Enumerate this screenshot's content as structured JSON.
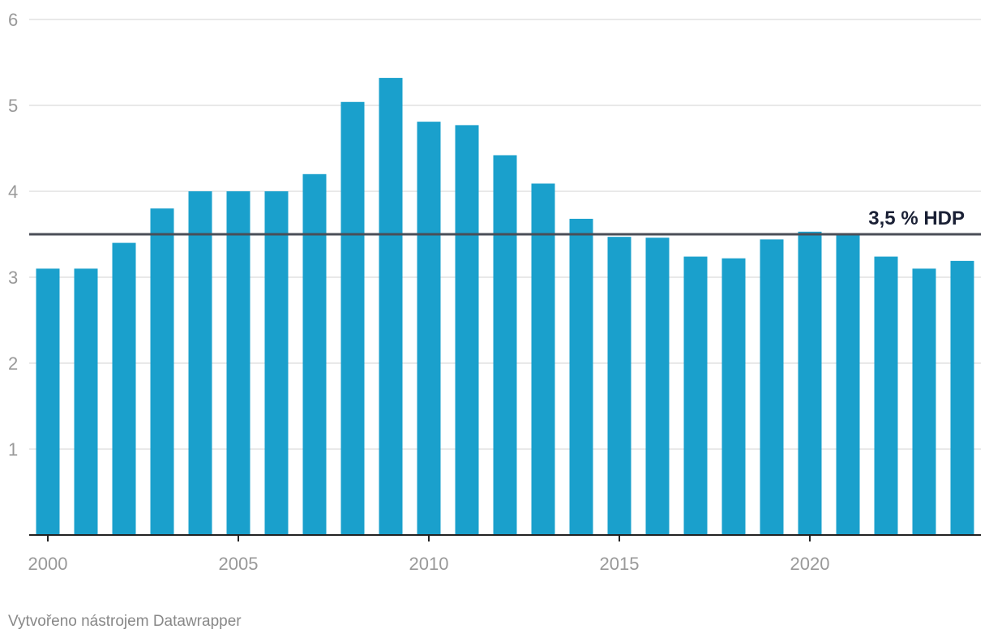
{
  "chart_data": {
    "type": "bar",
    "x": [
      2000,
      2001,
      2002,
      2003,
      2004,
      2005,
      2006,
      2007,
      2008,
      2009,
      2010,
      2011,
      2012,
      2013,
      2014,
      2015,
      2016,
      2017,
      2018,
      2019,
      2020,
      2021,
      2022,
      2023,
      2024
    ],
    "values": [
      3.1,
      3.1,
      3.4,
      3.8,
      4.0,
      4.0,
      4.0,
      4.2,
      5.04,
      5.32,
      4.81,
      4.77,
      4.42,
      4.09,
      3.68,
      3.47,
      3.46,
      3.24,
      3.22,
      3.44,
      3.53,
      3.49,
      3.24,
      3.1,
      3.19
    ],
    "ylim": [
      0,
      6
    ],
    "yticks": [
      1,
      2,
      3,
      4,
      5,
      6
    ],
    "xticks": [
      2000,
      2005,
      2010,
      2015,
      2020
    ],
    "grid": true,
    "reference_line": {
      "value": 3.5,
      "label": "3,5 % HDP"
    },
    "colors": {
      "bar": "#1aa0cc",
      "reference_line": "#4a4e57",
      "reference_label": "#1a2035",
      "grid": "#e2e2e2",
      "axis": "#222222"
    }
  },
  "footer": {
    "credit": "Vytvořeno nástrojem Datawrapper"
  }
}
